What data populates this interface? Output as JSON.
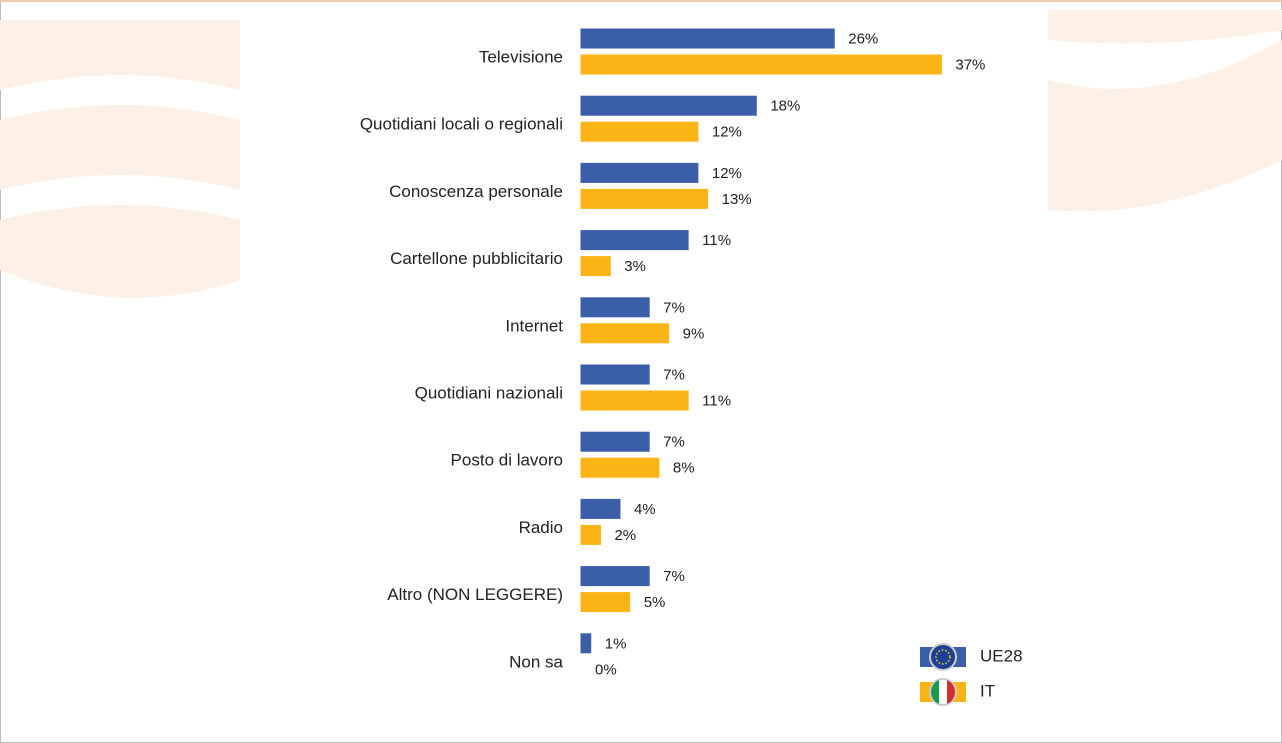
{
  "chart_data": {
    "type": "bar",
    "orientation": "horizontal",
    "categories": [
      "Televisione",
      "Quotidiani locali o regionali",
      "Conoscenza personale",
      "Cartellone pubblicitario",
      "Internet",
      "Quotidiani nazionali",
      "Posto di lavoro",
      "Radio",
      "Altro (NON LEGGERE)",
      "Non sa"
    ],
    "series": [
      {
        "name": "UE28",
        "color": "#3a5ea8",
        "values": [
          26,
          18,
          12,
          11,
          7,
          7,
          7,
          4,
          7,
          1
        ],
        "value_labels": [
          "26%",
          "18%",
          "12%",
          "11%",
          "7%",
          "7%",
          "7%",
          "4%",
          "7%",
          "1%"
        ]
      },
      {
        "name": "IT",
        "color": "#fbb416",
        "values": [
          37,
          12,
          13,
          3,
          9,
          11,
          8,
          2,
          5,
          0
        ],
        "value_labels": [
          "37%",
          "12%",
          "13%",
          "3%",
          "9%",
          "11%",
          "8%",
          "2%",
          "5%",
          "0%"
        ]
      }
    ],
    "legend": "bottom-right"
  }
}
